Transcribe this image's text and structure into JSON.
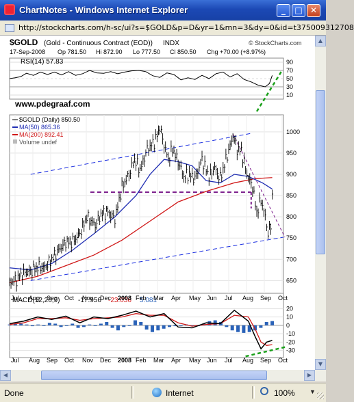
{
  "window": {
    "title": "ChartNotes - Windows Internet Explorer"
  },
  "address": {
    "url": "http://stockcharts.com/h-sc/ui?s=$GOLD&p=D&yr=1&mn=3&dy=0&id=t375009312708"
  },
  "chart": {
    "symbol": "$GOLD",
    "description": "(Gold - Continuous Contract (EOD))",
    "exchange": "INDX",
    "site": "© StockCharts.com",
    "quote": {
      "date": "17-Sep-2008",
      "op": "Op 781.50",
      "hi": "Hi 872.90",
      "lo": "Lo 777.50",
      "cl": "Cl 850.50",
      "chg": "Chg +70.00 (+8.97%)"
    },
    "rsi_label": "RSI(14) 57.83",
    "watermark": "www.pdegraaf.com",
    "legend": [
      {
        "text": "$GOLD (Daily) 850.50",
        "color": "#000000"
      },
      {
        "text": "MA(50) 865.36",
        "color": "#1f2db3"
      },
      {
        "text": "MA(200) 892.41",
        "color": "#d01818"
      },
      {
        "text": "Volume undef",
        "color": "#555555"
      }
    ],
    "macd_label": {
      "name": "MACD(12,26,9)",
      "v1": "-17.956",
      "v2": "-23.036",
      "v3": "5.081"
    },
    "colors": {
      "price": "#000000",
      "ma50": "#1f2db3",
      "ma200": "#d01818",
      "channel": "#1a2ee0",
      "support": "#7a1a8a",
      "annot": "#1aa01a"
    }
  },
  "chart_data": [
    {
      "type": "line",
      "title": "RSI(14) 57.83",
      "y_ticks": [
        90,
        70,
        50,
        30,
        10
      ],
      "ylim": [
        0,
        100
      ],
      "points": [
        [
          0,
          50
        ],
        [
          8,
          52
        ],
        [
          16,
          55
        ],
        [
          24,
          63
        ],
        [
          34,
          58
        ],
        [
          44,
          66
        ],
        [
          54,
          60
        ],
        [
          64,
          66
        ],
        [
          74,
          59
        ],
        [
          84,
          67
        ],
        [
          94,
          58
        ],
        [
          104,
          62
        ],
        [
          114,
          70
        ],
        [
          124,
          64
        ],
        [
          134,
          63
        ],
        [
          144,
          67
        ],
        [
          154,
          62
        ],
        [
          164,
          66
        ],
        [
          174,
          69
        ],
        [
          184,
          70
        ],
        [
          194,
          67
        ],
        [
          204,
          57
        ],
        [
          214,
          53
        ],
        [
          224,
          64
        ],
        [
          234,
          60
        ],
        [
          244,
          47
        ],
        [
          254,
          52
        ],
        [
          264,
          48
        ],
        [
          274,
          58
        ],
        [
          284,
          50
        ],
        [
          294,
          62
        ],
        [
          304,
          66
        ],
        [
          314,
          54
        ],
        [
          324,
          62
        ],
        [
          334,
          48
        ],
        [
          344,
          42
        ],
        [
          354,
          34
        ],
        [
          364,
          30
        ],
        [
          370,
          38
        ],
        [
          374,
          57.83
        ]
      ]
    },
    {
      "type": "line",
      "title": "$GOLD (Daily) 850.50",
      "ylim": [
        620,
        1040
      ],
      "y_ticks": [
        1000,
        950,
        900,
        850,
        800,
        750,
        700,
        650
      ],
      "x_ticks": [
        "Jul",
        "Aug",
        "Sep",
        "Oct",
        "Nov",
        "Dec",
        "2008",
        "Feb",
        "Mar",
        "Apr",
        "May",
        "Jun",
        "Jul",
        "Aug",
        "Sep",
        "Oct"
      ],
      "series": [
        {
          "name": "$GOLD",
          "points": [
            [
              0,
              645
            ],
            [
              10,
              652
            ],
            [
              20,
              668
            ],
            [
              30,
              672
            ],
            [
              40,
              682
            ],
            [
              50,
              680
            ],
            [
              60,
              700
            ],
            [
              70,
              722
            ],
            [
              80,
              740
            ],
            [
              90,
              742
            ],
            [
              100,
              760
            ],
            [
              110,
              800
            ],
            [
              116,
              790
            ],
            [
              122,
              780
            ],
            [
              130,
              805
            ],
            [
              140,
              812
            ],
            [
              150,
              795
            ],
            [
              160,
              870
            ],
            [
              170,
              900
            ],
            [
              178,
              935
            ],
            [
              186,
              910
            ],
            [
              196,
              960
            ],
            [
              206,
              975
            ],
            [
              214,
              1010
            ],
            [
              220,
              970
            ],
            [
              226,
              935
            ],
            [
              232,
              960
            ],
            [
              240,
              930
            ],
            [
              248,
              895
            ],
            [
              256,
              900
            ],
            [
              264,
              890
            ],
            [
              274,
              935
            ],
            [
              284,
              895
            ],
            [
              292,
              915
            ],
            [
              300,
              890
            ],
            [
              310,
              945
            ],
            [
              318,
              990
            ],
            [
              324,
              960
            ],
            [
              330,
              955
            ],
            [
              338,
              900
            ],
            [
              346,
              870
            ],
            [
              352,
              810
            ],
            [
              358,
              840
            ],
            [
              364,
              800
            ],
            [
              368,
              760
            ],
            [
              372,
              780
            ],
            [
              374,
              850.5
            ]
          ]
        },
        {
          "name": "MA(50)",
          "points": [
            [
              0,
              680
            ],
            [
              30,
              675
            ],
            [
              60,
              690
            ],
            [
              90,
              722
            ],
            [
              120,
              760
            ],
            [
              150,
              800
            ],
            [
              180,
              850
            ],
            [
              200,
              900
            ],
            [
              220,
              935
            ],
            [
              240,
              930
            ],
            [
              260,
              920
            ],
            [
              280,
              885
            ],
            [
              300,
              880
            ],
            [
              320,
              900
            ],
            [
              340,
              895
            ],
            [
              360,
              880
            ],
            [
              374,
              865.36
            ]
          ]
        },
        {
          "name": "MA(200)",
          "points": [
            [
              0,
              645
            ],
            [
              40,
              660
            ],
            [
              80,
              685
            ],
            [
              120,
              710
            ],
            [
              160,
              745
            ],
            [
              200,
              790
            ],
            [
              240,
              835
            ],
            [
              280,
              860
            ],
            [
              320,
              880
            ],
            [
              350,
              890
            ],
            [
              374,
              892.41
            ]
          ]
        }
      ]
    },
    {
      "type": "line",
      "title": "MACD(12,26,9)",
      "y_ticks": [
        20,
        10,
        0,
        -10,
        -20,
        -30
      ],
      "ylim": [
        -36,
        26
      ],
      "series": [
        {
          "name": "MACD",
          "points": [
            [
              0,
              2
            ],
            [
              20,
              5
            ],
            [
              40,
              10
            ],
            [
              60,
              7
            ],
            [
              80,
              11
            ],
            [
              100,
              3
            ],
            [
              120,
              10
            ],
            [
              140,
              8
            ],
            [
              160,
              12
            ],
            [
              180,
              17
            ],
            [
              200,
              10
            ],
            [
              220,
              14
            ],
            [
              240,
              -2
            ],
            [
              260,
              -3
            ],
            [
              280,
              3
            ],
            [
              300,
              2
            ],
            [
              320,
              18
            ],
            [
              340,
              5
            ],
            [
              350,
              -14
            ],
            [
              358,
              -28
            ],
            [
              366,
              -20
            ],
            [
              374,
              -17.956
            ]
          ]
        },
        {
          "name": "Signal",
          "points": [
            [
              0,
              1
            ],
            [
              20,
              3
            ],
            [
              40,
              8
            ],
            [
              60,
              8
            ],
            [
              80,
              9
            ],
            [
              100,
              6
            ],
            [
              120,
              8
            ],
            [
              140,
              9
            ],
            [
              160,
              10
            ],
            [
              180,
              14
            ],
            [
              200,
              12
            ],
            [
              220,
              12
            ],
            [
              240,
              3
            ],
            [
              260,
              -1
            ],
            [
              280,
              1
            ],
            [
              300,
              2
            ],
            [
              320,
              12
            ],
            [
              340,
              10
            ],
            [
              350,
              -5
            ],
            [
              358,
              -20
            ],
            [
              366,
              -24
            ],
            [
              374,
              -23.036
            ]
          ]
        },
        {
          "name": "Histogram",
          "values": [
            1,
            2,
            2,
            1,
            -1,
            1,
            0,
            3,
            2,
            -2,
            0,
            2,
            -3,
            -2,
            1,
            0,
            2,
            4,
            -3,
            -6,
            -2,
            0,
            6,
            4,
            -5,
            -8,
            -6,
            -4,
            -2,
            -1,
            0,
            1,
            0,
            -1,
            2,
            5,
            6,
            4,
            -2,
            -6,
            -8,
            -9,
            -8,
            -6,
            -3,
            4,
            5.081
          ]
        }
      ]
    }
  ],
  "statusbar": {
    "status": "Done",
    "zone": "Internet",
    "zoom": "100%"
  }
}
